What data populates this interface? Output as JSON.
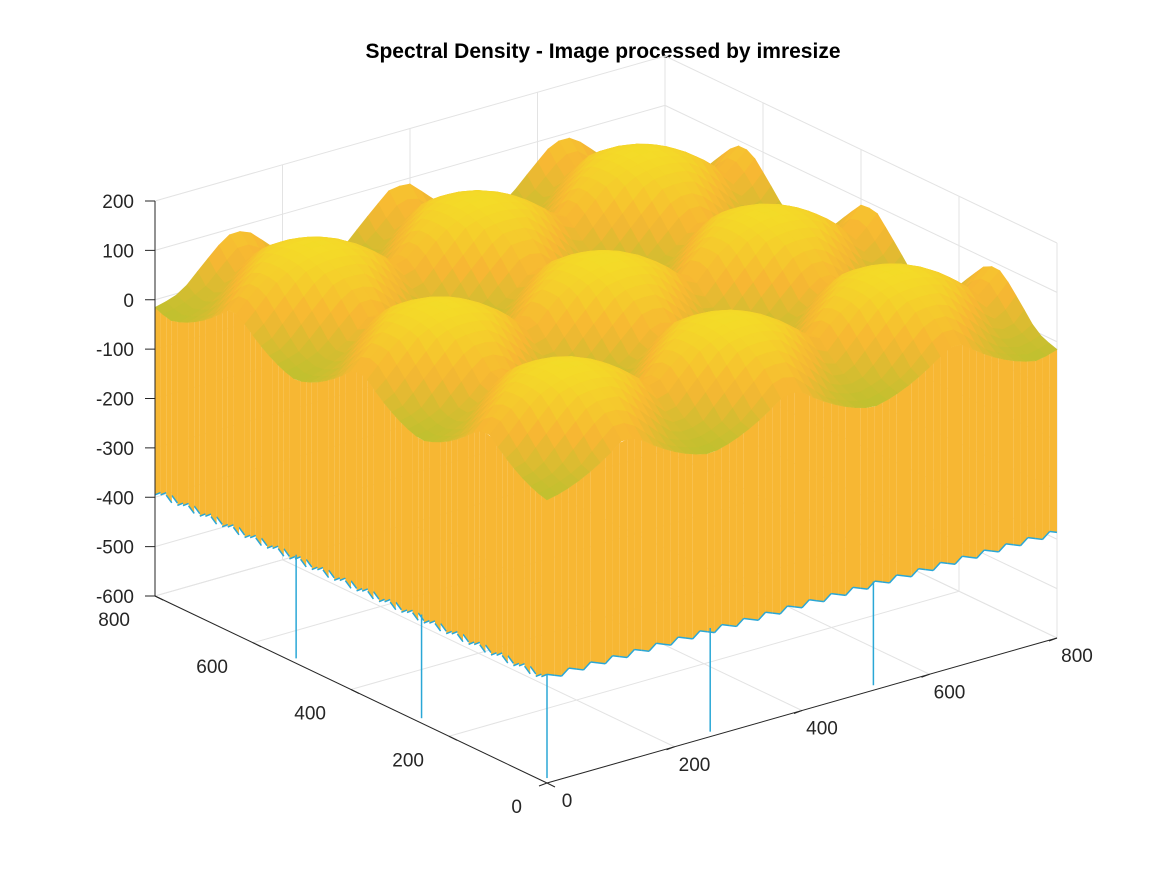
{
  "figure": {
    "title": "Spectral Density - Image processed by imresize"
  },
  "chart_data": {
    "type": "surface",
    "title": "Spectral Density - Image processed by imresize",
    "xlabel": "",
    "ylabel": "",
    "zlabel": "",
    "xlim": [
      0,
      800
    ],
    "ylim": [
      0,
      800
    ],
    "zlim": [
      -600,
      200
    ],
    "x_ticks": [
      "0",
      "200",
      "400",
      "600",
      "800"
    ],
    "y_ticks": [
      "0",
      "200",
      "400",
      "600",
      "800"
    ],
    "z_ticks": [
      "200",
      "100",
      "0",
      "-100",
      "-200",
      "-300",
      "-400",
      "-500",
      "-600"
    ],
    "grid": true,
    "view": "3-D perspective (MATLAB default azimuth -37.5, elevation 30)",
    "colormap": [
      "#1f9cd6",
      "#23b8c1",
      "#a8c632",
      "#f6b832",
      "#f9e21f"
    ],
    "surface": {
      "extent": [
        0,
        800
      ],
      "tile_period": 256,
      "plateau_level": 50,
      "sample_min": -380,
      "deep_spike_min": -600,
      "peak_max": 150,
      "description": "periodic dome-shaped lobes with deep sample spikes"
    }
  },
  "colors": {
    "background": "#ffffff",
    "axis": "#262626",
    "grid": "#e3e3e3",
    "surface_yellow": "#f3d526",
    "surface_orange": "#f7b733",
    "surface_green": "#b6c22e",
    "spike_blue": "#2aa7d6"
  }
}
